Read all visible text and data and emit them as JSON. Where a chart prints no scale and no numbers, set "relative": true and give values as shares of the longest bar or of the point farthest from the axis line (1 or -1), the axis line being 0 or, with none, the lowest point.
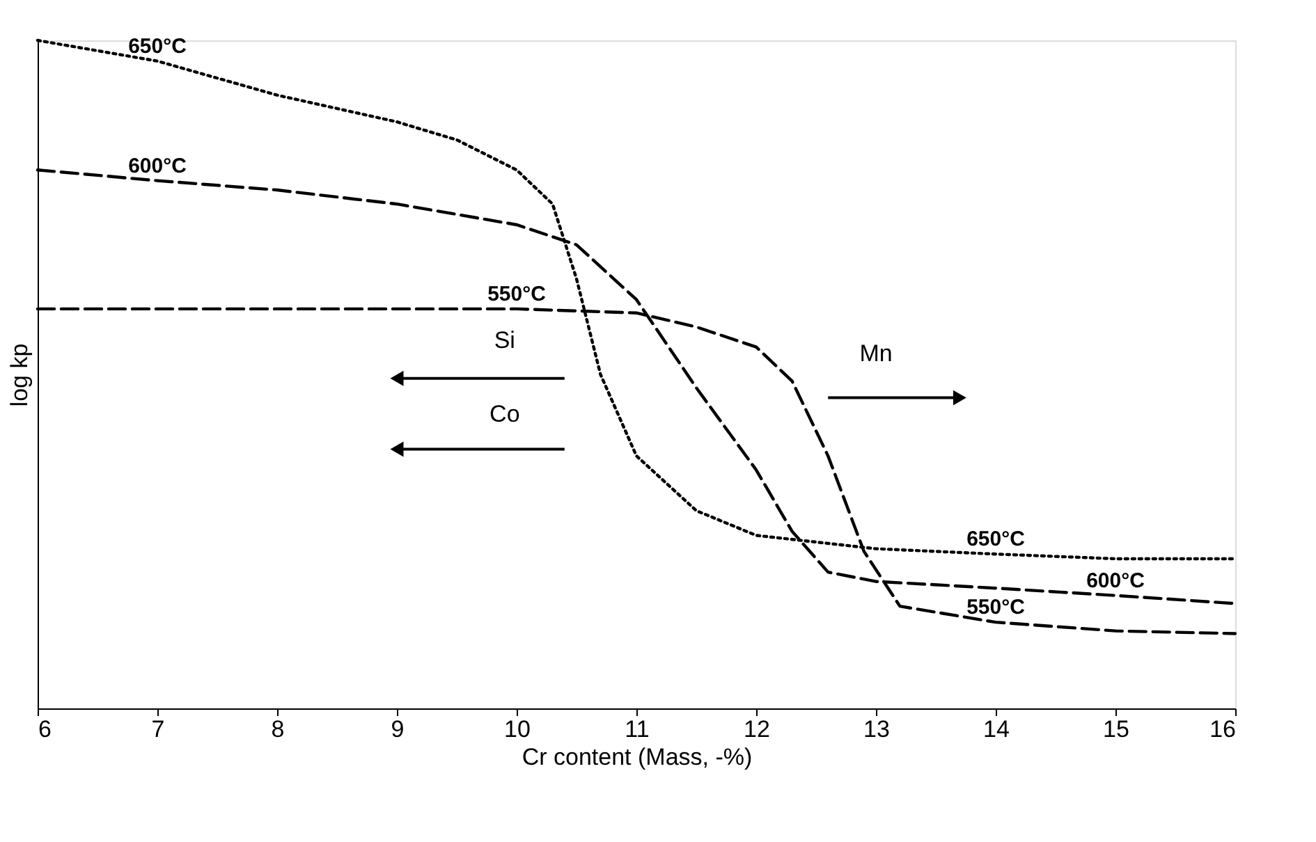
{
  "chart_data": {
    "type": "line",
    "xlabel": "Cr content (Mass, -%)",
    "ylabel": "log kp",
    "relative": true,
    "xlim": [
      6,
      16
    ],
    "xticks": [
      6,
      7,
      8,
      9,
      10,
      11,
      12,
      13,
      14,
      15,
      16
    ],
    "tick_labels": "x",
    "grid": false,
    "legend": false,
    "series": [
      {
        "name": "650°C",
        "color": "#000000",
        "line_style": "dotted",
        "x": [
          6,
          7,
          8,
          9,
          9.5,
          10,
          10.3,
          10.5,
          10.7,
          11,
          11.5,
          12,
          13,
          14,
          15,
          16
        ],
        "values": [
          1.0,
          0.969,
          0.918,
          0.878,
          0.851,
          0.806,
          0.755,
          0.643,
          0.5,
          0.378,
          0.296,
          0.259,
          0.239,
          0.231,
          0.224,
          0.224
        ]
      },
      {
        "name": "600°C",
        "color": "#000000",
        "line_style": "dashed",
        "x": [
          6,
          7,
          8,
          9,
          10,
          10.5,
          11,
          11.5,
          12,
          12.3,
          12.6,
          13,
          14,
          15,
          16
        ],
        "values": [
          0.806,
          0.79,
          0.776,
          0.755,
          0.724,
          0.694,
          0.612,
          0.48,
          0.357,
          0.265,
          0.204,
          0.19,
          0.18,
          0.169,
          0.157
        ]
      },
      {
        "name": "550°C",
        "color": "#000000",
        "line_style": "dashed",
        "x": [
          6,
          8,
          10,
          11,
          11.5,
          12,
          12.3,
          12.6,
          12.9,
          13.2,
          14,
          15,
          16
        ],
        "values": [
          0.598,
          0.598,
          0.598,
          0.592,
          0.571,
          0.541,
          0.49,
          0.378,
          0.235,
          0.153,
          0.129,
          0.116,
          0.112
        ]
      }
    ],
    "annotations": [
      "Si",
      "Co",
      "Mn"
    ]
  }
}
